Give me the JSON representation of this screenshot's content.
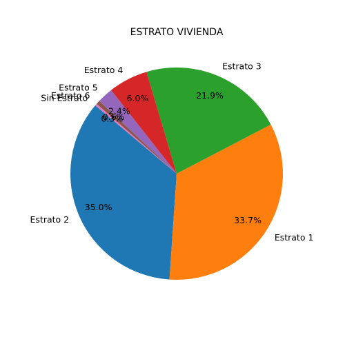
{
  "chart_data": {
    "type": "pie",
    "title": "ESTRATO VIVIENDA",
    "start_angle_deg": 140,
    "direction": "counterclockwise",
    "labels": [
      "Estrato 2",
      "Estrato 1",
      "Estrato 3",
      "Estrato 4",
      "Estrato 5",
      "Estrato 6",
      "Sin Estrato"
    ],
    "values": [
      35.0,
      33.7,
      21.9,
      6.0,
      2.4,
      0.6,
      0.3
    ],
    "pct_labels": [
      "35.0%",
      "33.7%",
      "21.9%",
      "6.0%",
      "2.4%",
      "0.6%",
      "0.3%"
    ],
    "colors": [
      "#1f77b4",
      "#ff7f0e",
      "#2ca02c",
      "#d62728",
      "#9467bd",
      "#8c564b",
      "#e377c2"
    ],
    "legend": "none"
  }
}
